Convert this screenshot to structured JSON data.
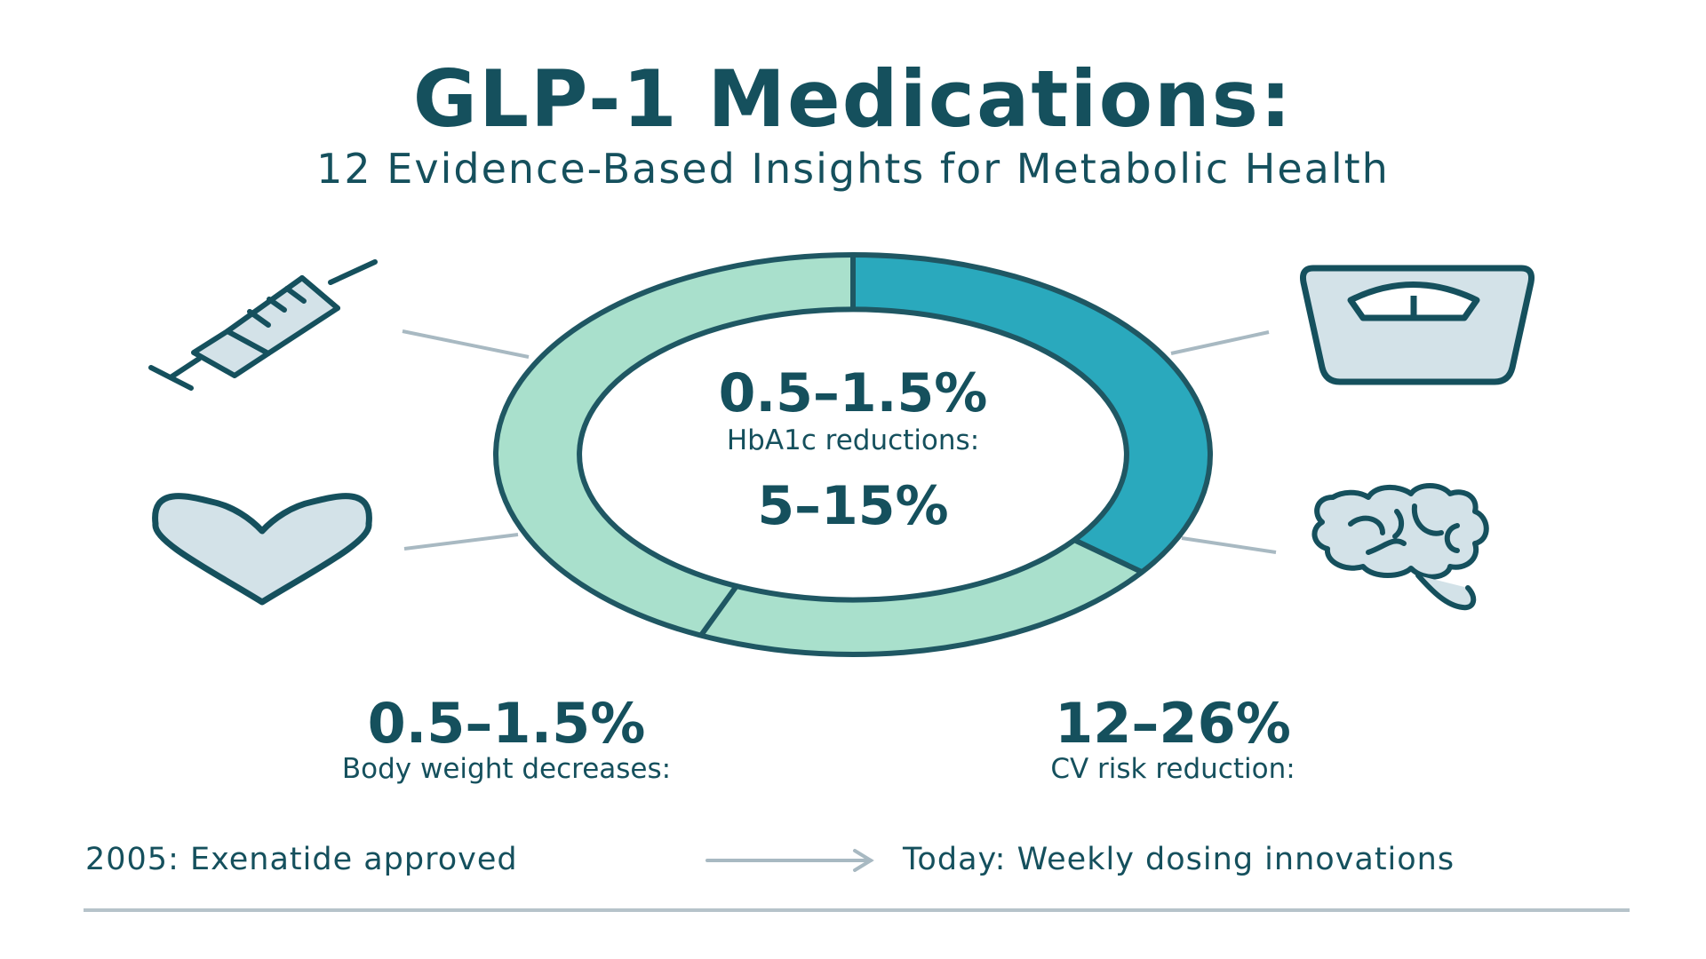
{
  "colors": {
    "text_dark": "#15505d",
    "ring_teal": "#2aa9bd",
    "ring_mint": "#a9e0cc",
    "ring_outline": "#1f5763",
    "icon_fill": "#d3e2e8",
    "connector": "#a8b9c2",
    "rule": "#b6c3ca"
  },
  "header": {
    "title": "GLP-1 Medications:",
    "subtitle": "12 Evidence-Based Insights for Metabolic Health"
  },
  "ring": {
    "segments": [
      {
        "fraction": 0.35,
        "color_key": "ring_teal"
      },
      {
        "fraction": 0.22,
        "color_key": "ring_mint"
      },
      {
        "fraction": 0.43,
        "color_key": "ring_mint"
      }
    ],
    "center_value_top": "0.5–1.5%",
    "center_label": "HbA1c reductions:",
    "center_value_bottom": "5–15%"
  },
  "icons": [
    "syringe-icon",
    "scale-icon",
    "heart-icon",
    "brain-icon"
  ],
  "stats": [
    {
      "value": "0.5–1.5%",
      "label": "Body weight decreases:"
    },
    {
      "value": "12–26%",
      "label": "CV risk reduction:"
    }
  ],
  "timeline": {
    "start": "2005:  Exenatide approved",
    "end": "Today: Weekly dosing innovations",
    "arrow_icon": "arrow-right-icon"
  }
}
